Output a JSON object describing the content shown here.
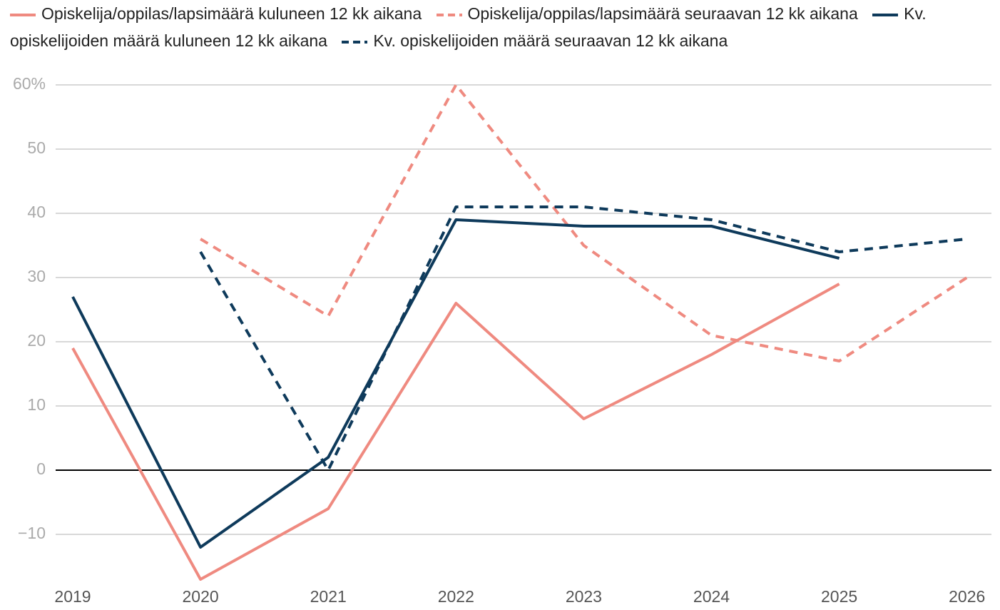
{
  "chart_data": {
    "type": "line",
    "categories": [
      "2019",
      "2020",
      "2021",
      "2022",
      "2023",
      "2024",
      "2025",
      "2026"
    ],
    "series": [
      {
        "name": "Opiskelija/oppilas/lapsimäärä kuluneen 12 kk aikana",
        "color": "#ef8a80",
        "style": "solid",
        "values": [
          19,
          -17,
          -6,
          26,
          8,
          18,
          29,
          null
        ]
      },
      {
        "name": "Opiskelija/oppilas/lapsimäärä seuraavan 12 kk aikana",
        "color": "#ef8a80",
        "style": "dashed",
        "values": [
          null,
          36,
          24,
          60,
          35,
          21,
          17,
          30
        ]
      },
      {
        "name": "Kv. opiskelijoiden määrä kuluneen 12 kk aikana",
        "color": "#0e3a5b",
        "style": "solid",
        "values": [
          27,
          -12,
          2,
          39,
          38,
          38,
          33,
          null
        ]
      },
      {
        "name": "Kv. opiskelijoiden määrä seuraavan 12 kk aikana",
        "color": "#0e3a5b",
        "style": "dashed",
        "values": [
          null,
          34,
          0,
          41,
          41,
          39,
          34,
          36
        ]
      }
    ],
    "ylim": [
      -18,
      61
    ],
    "yticks": [
      {
        "value": -10,
        "label": "−10"
      },
      0,
      10,
      20,
      30,
      40,
      50,
      {
        "value": 60,
        "label": "60%"
      }
    ],
    "grid": true
  }
}
